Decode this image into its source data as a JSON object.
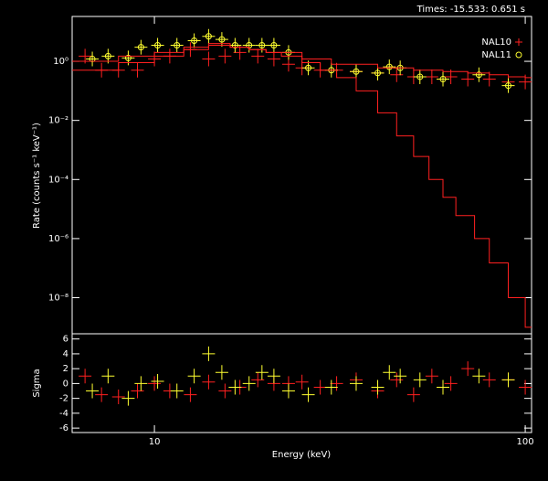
{
  "chart_data": [
    {
      "type": "step-spectrum",
      "title": "Times: -15.533: 0.651 s",
      "ylabel": "Rate (counts s⁻¹ keV⁻¹)",
      "xscale": "log",
      "yscale": "log",
      "xlim": [
        6,
        104
      ],
      "ylim": [
        6e-10,
        33
      ],
      "yticks": [
        {
          "value": 1,
          "label": "10⁰"
        },
        {
          "value": 0.01,
          "label": "10⁻²"
        },
        {
          "value": 0.0001,
          "label": "10⁻⁴"
        },
        {
          "value": 1e-06,
          "label": "10⁻⁶"
        },
        {
          "value": 1e-08,
          "label": "10⁻⁸"
        }
      ],
      "legend": "upper right",
      "series": [
        {
          "name": "NAL10",
          "marker": "+",
          "color": "#ff2020",
          "x": [
            6.5,
            7.2,
            8,
            9,
            10,
            11,
            12.5,
            14,
            15.5,
            17,
            19,
            21,
            23,
            25,
            28,
            31,
            35,
            40,
            45,
            50,
            56,
            63,
            70,
            80,
            90,
            100
          ],
          "values": [
            1.5,
            0.5,
            0.5,
            0.5,
            1.2,
            1.5,
            2.5,
            1.2,
            1.5,
            2,
            1.5,
            1.2,
            0.8,
            0.6,
            0.5,
            0.5,
            0.45,
            0.4,
            0.35,
            0.3,
            0.3,
            0.3,
            0.25,
            0.25,
            0.2,
            0.2
          ]
        },
        {
          "name": "NAL11",
          "marker": "o",
          "color": "#ffff30",
          "x": [
            6.8,
            7.5,
            8.5,
            9.2,
            10.2,
            11.5,
            12.8,
            14,
            15.2,
            16.5,
            18,
            19.5,
            21,
            23,
            26,
            30,
            35,
            40,
            43,
            46,
            52,
            60,
            75,
            90
          ],
          "values": [
            1.2,
            1.5,
            1.3,
            3,
            3.5,
            3.5,
            5,
            7,
            5.5,
            3.5,
            3.5,
            3.5,
            3.5,
            2,
            0.6,
            0.5,
            0.45,
            0.4,
            0.65,
            0.6,
            0.3,
            0.25,
            0.35,
            0.15
          ]
        },
        {
          "marker": "step",
          "color": "#ff2020",
          "x": [
            6,
            8,
            10,
            12,
            14,
            16,
            18,
            20,
            22,
            25,
            28,
            31,
            35,
            40,
            45,
            50,
            55,
            60,
            65,
            73,
            80,
            90,
            100
          ],
          "values": [
            0.5,
            0.9,
            1.5,
            2.5,
            3.5,
            3,
            2.5,
            2,
            1.5,
            0.9,
            0.5,
            0.28,
            0.1,
            0.018,
            0.003,
            0.0006,
            0.0001,
            2.5e-05,
            6e-06,
            1e-06,
            1.5e-07,
            1e-08,
            1e-09
          ]
        },
        {
          "marker": "step",
          "color": "#ff2020",
          "x": [
            6,
            8,
            10,
            12,
            14,
            16,
            18,
            20,
            25,
            30,
            40,
            50,
            60,
            70,
            80,
            90,
            100
          ],
          "values": [
            1,
            1.5,
            2,
            3,
            4,
            3,
            2.5,
            2,
            1.2,
            0.8,
            0.6,
            0.5,
            0.45,
            0.4,
            0.35,
            0.3,
            0.28
          ]
        }
      ]
    },
    {
      "type": "residual",
      "xlabel": "Energy (keV)",
      "ylabel": "Sigma",
      "xscale": "log",
      "xlim": [
        6,
        104
      ],
      "xticks": [
        10,
        100
      ],
      "ylim": [
        -6.6,
        6.7
      ],
      "yticks": [
        6,
        4,
        2,
        0,
        -2,
        -4,
        -6
      ],
      "series": [
        {
          "color": "#ff2020",
          "x": [
            6.5,
            7.2,
            8,
            9,
            10,
            11,
            12.5,
            14,
            15.5,
            17,
            19,
            21,
            23,
            25,
            28,
            31,
            35,
            40,
            45,
            50,
            56,
            63,
            70,
            80,
            90,
            100
          ],
          "values": [
            1,
            -1.5,
            -1.8,
            -1,
            0,
            -1,
            -1.5,
            0.2,
            -1,
            -0.5,
            0.5,
            0,
            0,
            0.2,
            -0.5,
            0,
            0.5,
            -1,
            0.5,
            -1.5,
            1,
            0,
            2,
            0.5,
            0.5,
            -0.5
          ]
        },
        {
          "color": "#ffff30",
          "x": [
            6.8,
            7.5,
            8.5,
            9.2,
            10.2,
            11.5,
            12.8,
            14,
            15.2,
            16.5,
            18,
            19.5,
            21,
            23,
            26,
            30,
            35,
            40,
            43,
            46,
            52,
            60,
            75,
            90
          ],
          "values": [
            -1,
            1,
            -2,
            0,
            0.3,
            -1,
            1,
            4,
            1.5,
            -0.5,
            0,
            1.5,
            1,
            -1,
            -1.5,
            -0.5,
            0,
            -0.5,
            1.5,
            1,
            0.5,
            -0.5,
            1,
            0.5
          ]
        }
      ]
    }
  ]
}
